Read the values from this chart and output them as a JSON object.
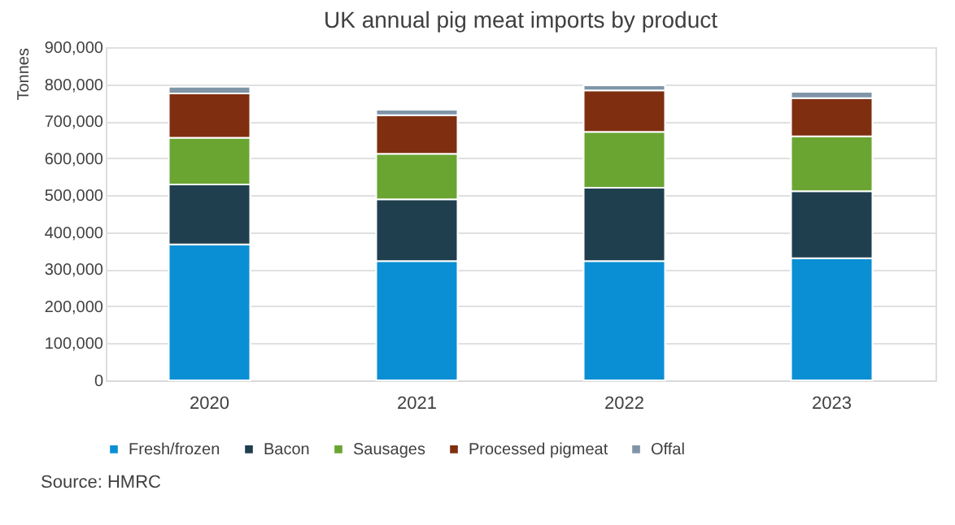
{
  "chart_data": {
    "type": "bar",
    "title": "UK annual pig meat imports by product",
    "ylabel": "Tonnes",
    "categories": [
      "2020",
      "2021",
      "2022",
      "2023"
    ],
    "stacked": true,
    "series": [
      {
        "name": "Fresh/frozen",
        "color": "#0a8fd4",
        "values": [
          367000,
          322000,
          322000,
          330000
        ]
      },
      {
        "name": "Bacon",
        "color": "#1f3f4f",
        "values": [
          162000,
          167000,
          198000,
          181000
        ]
      },
      {
        "name": "Sausages",
        "color": "#6aa532",
        "values": [
          126000,
          123000,
          151000,
          148000
        ]
      },
      {
        "name": "Processed pigmeat",
        "color": "#7f2f10",
        "values": [
          120000,
          104000,
          112000,
          103000
        ]
      },
      {
        "name": "Offal",
        "color": "#8096a8",
        "values": [
          18000,
          15000,
          14000,
          17000
        ]
      }
    ],
    "ylim": [
      0,
      900000
    ],
    "yticks": [
      0,
      {
        "value": 100000,
        "label": "100,000"
      },
      {
        "value": 200000,
        "label": "200,000"
      },
      {
        "value": 300000,
        "label": "300,000"
      },
      {
        "value": 400000,
        "label": "400,000"
      },
      {
        "value": 500000,
        "label": "500,000"
      },
      {
        "value": 600000,
        "label": "600,000"
      },
      {
        "value": 700000,
        "label": "700,000"
      },
      {
        "value": 800000,
        "label": "800,000"
      },
      {
        "value": 900000,
        "label": "900,000"
      }
    ],
    "grid": "y",
    "legend": "bottom",
    "annotations": [
      "Source: HMRC"
    ]
  }
}
